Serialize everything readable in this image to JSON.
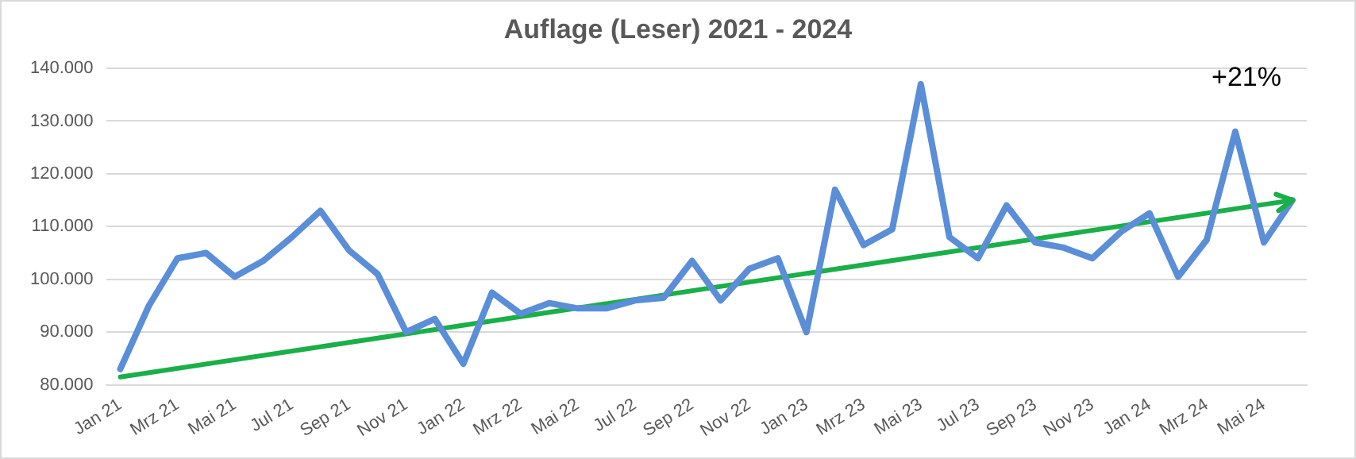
{
  "chart_data": {
    "type": "line",
    "title": "Auflage (Leser) 2021 - 2024",
    "categories": [
      "Jan 21",
      null,
      "Mrz 21",
      null,
      "Mai 21",
      null,
      "Jul 21",
      null,
      "Sep 21",
      null,
      "Nov 21",
      null,
      "Jan 22",
      null,
      "Mrz 22",
      null,
      "Mai 22",
      null,
      "Jul 22",
      null,
      "Sep 22",
      null,
      "Nov 22",
      null,
      "Jan 23",
      null,
      "Mrz 23",
      null,
      "Mai 23",
      null,
      "Jul 23",
      null,
      "Sep 23",
      null,
      "Nov 23",
      null,
      "Jan 24",
      null,
      "Mrz 24",
      null,
      "Mai 24",
      null
    ],
    "series": [
      {
        "color": "#5a8ed8",
        "values": [
          83000,
          95000,
          104000,
          105000,
          100500,
          103500,
          108000,
          113000,
          105500,
          101000,
          90000,
          92500,
          84000,
          97500,
          93500,
          95500,
          94500,
          94500,
          96000,
          96500,
          103500,
          96000,
          102000,
          104000,
          90000,
          117000,
          106500,
          109500,
          137000,
          108000,
          104000,
          114000,
          107000,
          106000,
          104000,
          109000,
          112500,
          100500,
          107500,
          128000,
          107000,
          115000
        ]
      },
      {
        "color": "#1aaf48",
        "values": [
          81500,
          null,
          null,
          null,
          null,
          null,
          null,
          null,
          null,
          null,
          null,
          null,
          null,
          null,
          null,
          null,
          null,
          null,
          null,
          null,
          null,
          null,
          null,
          null,
          null,
          null,
          null,
          null,
          null,
          null,
          null,
          null,
          null,
          null,
          null,
          null,
          null,
          null,
          null,
          null,
          null,
          115000
        ]
      }
    ],
    "ylim": [
      80000,
      140000
    ],
    "yticks": [
      {
        "value": 80000,
        "label": "80.000"
      },
      {
        "value": 90000,
        "label": "90.000"
      },
      {
        "value": 100000,
        "label": "100.000"
      },
      {
        "value": 110000,
        "label": "110.000"
      },
      {
        "value": 120000,
        "label": "120.000"
      },
      {
        "value": 130000,
        "label": "130.000"
      },
      {
        "value": 140000,
        "label": "140.000"
      }
    ],
    "grid": "y",
    "legend": false,
    "annotations": [
      "+21%"
    ]
  }
}
